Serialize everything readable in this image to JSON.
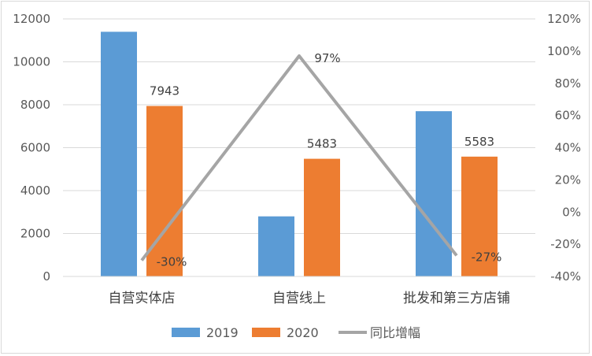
{
  "chart_data": {
    "type": "bar",
    "categories": [
      "自营实体店",
      "自营线上",
      "批发和第三方店铺"
    ],
    "series": [
      {
        "name": "2019",
        "kind": "bar",
        "axis": "left",
        "values": [
          11400,
          2800,
          7700
        ],
        "color": "#5b9bd5"
      },
      {
        "name": "2020",
        "kind": "bar",
        "axis": "left",
        "values": [
          7943,
          5483,
          5583
        ],
        "color": "#ed7d31",
        "data_labels": [
          "7943",
          "5483",
          "5583"
        ]
      },
      {
        "name": "同比增幅",
        "kind": "line",
        "axis": "right",
        "values": [
          -30,
          97,
          -27
        ],
        "color": "#a5a5a5",
        "data_labels": [
          "-30%",
          "97%",
          "-27%"
        ]
      }
    ],
    "left_axis": {
      "ylim": [
        0,
        12000
      ],
      "ticks": [
        "0",
        "2000",
        "4000",
        "6000",
        "8000",
        "10000",
        "12000"
      ]
    },
    "right_axis": {
      "ylim": [
        -40,
        120
      ],
      "ticks": [
        "-40%",
        "-20%",
        "0%",
        "20%",
        "40%",
        "60%",
        "80%",
        "100%",
        "120%"
      ]
    },
    "grid": true,
    "legend_position": "bottom"
  }
}
